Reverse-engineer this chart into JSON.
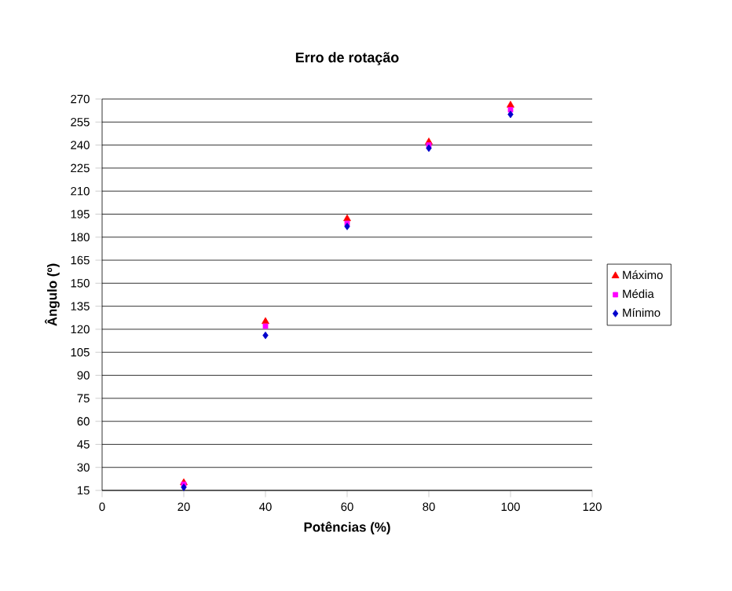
{
  "chart_data": {
    "type": "scatter",
    "title": "Erro de rotação",
    "xlabel": "Potências (%)",
    "ylabel": "Ângulo (º)",
    "x": [
      20,
      40,
      60,
      80,
      100
    ],
    "series": [
      {
        "name": "Máximo",
        "color": "#ff0000",
        "marker": "triangle",
        "values": [
          20,
          125,
          192,
          242,
          266
        ]
      },
      {
        "name": "Média",
        "color": "#ff00ff",
        "marker": "square",
        "values": [
          19,
          122,
          189,
          240,
          263
        ]
      },
      {
        "name": "Mínimo",
        "color": "#0000cc",
        "marker": "diamond",
        "values": [
          17,
          116,
          187,
          238,
          260
        ]
      }
    ],
    "xlim": [
      0,
      120
    ],
    "xticks": [
      0,
      20,
      40,
      60,
      80,
      100,
      120
    ],
    "ylim": [
      15,
      270
    ],
    "yticks": [
      15,
      30,
      45,
      60,
      75,
      90,
      105,
      120,
      135,
      150,
      165,
      180,
      195,
      210,
      225,
      240,
      255,
      270
    ],
    "grid": "y",
    "legend": "right"
  }
}
